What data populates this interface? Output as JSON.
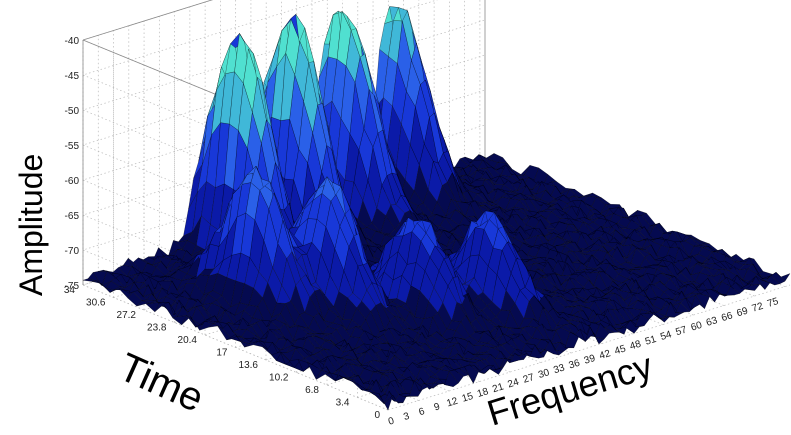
{
  "chart_data": {
    "type": "surface",
    "title": "",
    "xlabel": "Frequency",
    "ylabel": "Time",
    "zlabel": "Amplitude",
    "xlim": [
      0,
      79
    ],
    "ylim": [
      0,
      34
    ],
    "zlim": [
      -75,
      -40
    ],
    "x_ticks": [
      "0",
      "3",
      "6",
      "9",
      "12",
      "15",
      "18",
      "21",
      "24",
      "27",
      "30",
      "33",
      "36",
      "39",
      "42",
      "45",
      "48",
      "51",
      "54",
      "57",
      "60",
      "63",
      "66",
      "69",
      "72",
      "75"
    ],
    "y_ticks": [
      "0",
      "3.4",
      "6.8",
      "10.2",
      "13.6",
      "17",
      "20.4",
      "23.8",
      "27.2",
      "30.6",
      "34"
    ],
    "z_ticks": [
      "-75",
      "-70",
      "-65",
      "-60",
      "-55",
      "-50",
      "-45",
      "-40"
    ],
    "grid": true,
    "colormap": "jet",
    "colors": {
      "low": "#000080",
      "mid": "#1030e0",
      "high": "#40e0d0",
      "peak": "#e8d040",
      "edge": "#000000"
    },
    "noise_floor": -74,
    "peaks": [
      {
        "frequency": 24,
        "time": 30,
        "amplitude": -42
      },
      {
        "frequency": 36,
        "time": 31,
        "amplitude": -43
      },
      {
        "frequency": 48,
        "time": 32,
        "amplitude": -45
      },
      {
        "frequency": 60,
        "time": 33,
        "amplitude": -48
      },
      {
        "frequency": 13,
        "time": 22,
        "amplitude": -55
      },
      {
        "frequency": 20,
        "time": 18,
        "amplitude": -56
      },
      {
        "frequency": 29,
        "time": 13,
        "amplitude": -61
      },
      {
        "frequency": 38,
        "time": 10,
        "amplitude": -61
      }
    ]
  }
}
